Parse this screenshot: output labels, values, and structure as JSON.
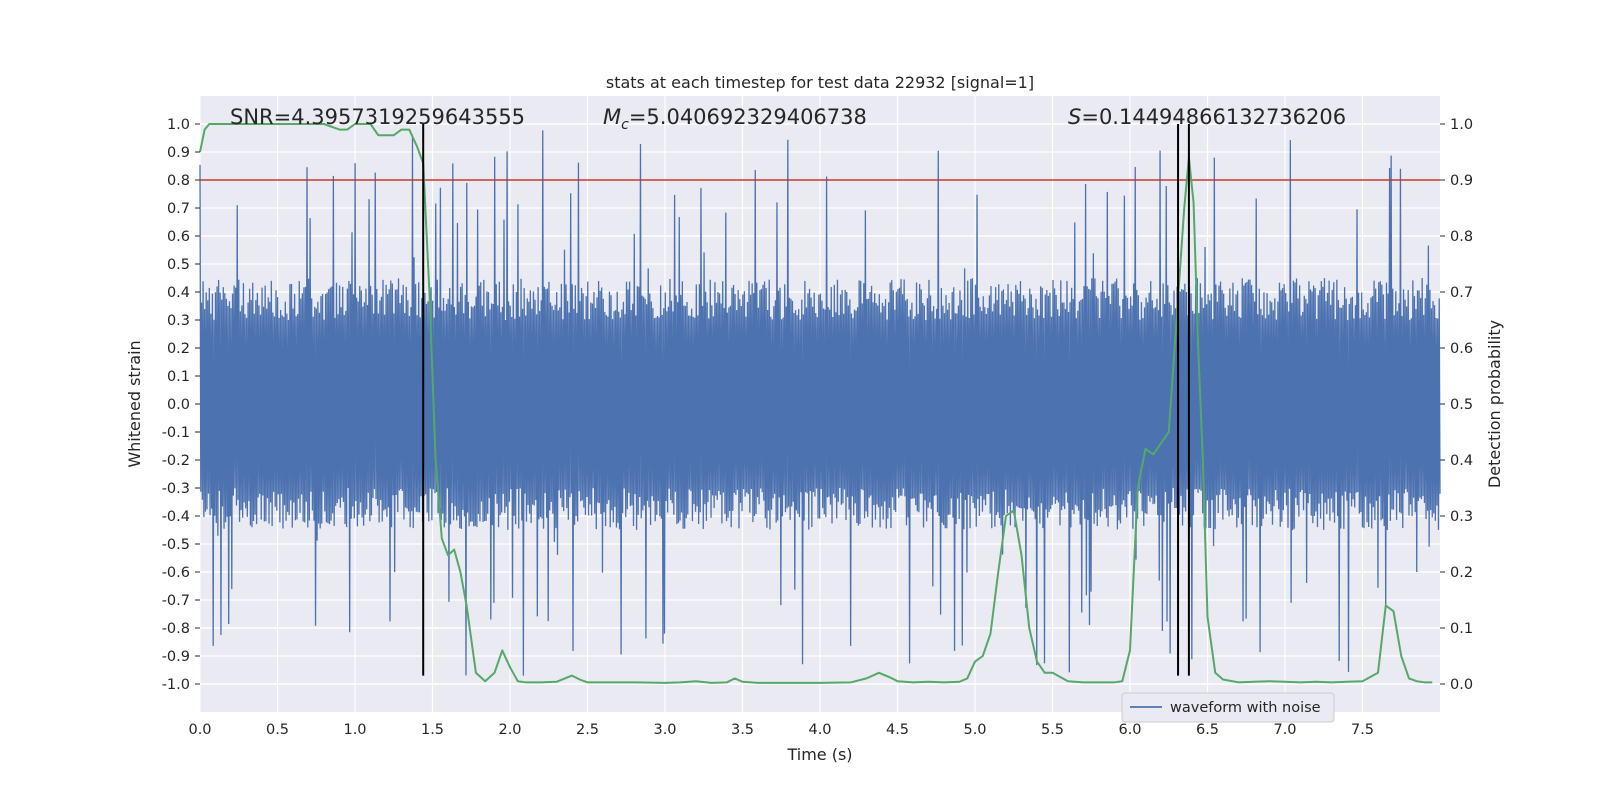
{
  "chart_data": {
    "type": "line",
    "title": "stats at each timestep for test data 22932 [signal=1]",
    "xlabel": "Time (s)",
    "ylabel_left": "Whitened strain",
    "ylabel_right": "Detection probability",
    "xlim": [
      0.0,
      8.0
    ],
    "ylim_left": [
      -1.1,
      1.1
    ],
    "ylim_right": [
      -0.05,
      1.05
    ],
    "x_ticks": [
      "0.0",
      "0.5",
      "1.0",
      "1.5",
      "2.0",
      "2.5",
      "3.0",
      "3.5",
      "4.0",
      "4.5",
      "5.0",
      "5.5",
      "6.0",
      "6.5",
      "7.0",
      "7.5"
    ],
    "y_left_ticks": [
      "-1.0",
      "-0.9",
      "-0.8",
      "-0.7",
      "-0.6",
      "-0.5",
      "-0.4",
      "-0.3",
      "-0.2",
      "-0.1",
      "0.0",
      "0.1",
      "0.2",
      "0.3",
      "0.4",
      "0.5",
      "0.6",
      "0.7",
      "0.8",
      "0.9",
      "1.0"
    ],
    "y_right_ticks": [
      "0.0",
      "0.1",
      "0.2",
      "0.3",
      "0.4",
      "0.5",
      "0.6",
      "0.7",
      "0.8",
      "0.9",
      "1.0"
    ],
    "grid": true,
    "annotations": {
      "snr": "SNR=4.3957319259643555",
      "mc_symbol": "M",
      "mc_sub": "c",
      "mc_value": "=5.040692329406738",
      "s_symbol": "S",
      "s_value": "=0.14494866132736206"
    },
    "threshold": {
      "value": 0.9,
      "axis": "right",
      "color": "#c0392b"
    },
    "vlines": [
      1.44,
      6.31,
      6.38
    ],
    "waveform": {
      "name": "waveform with noise",
      "color": "#4c72b0",
      "sample_count": 1600,
      "envelope_upper": 0.45,
      "envelope_lower": -0.45,
      "peak_max": 0.98,
      "peak_min": -0.97
    },
    "series": [
      {
        "name": "detection probability",
        "axis": "right",
        "color": "#55a868",
        "x": [
          0.0,
          0.03,
          0.06,
          0.12,
          0.2,
          0.3,
          0.4,
          0.5,
          0.6,
          0.7,
          0.8,
          0.9,
          0.95,
          1.0,
          1.05,
          1.1,
          1.15,
          1.2,
          1.25,
          1.3,
          1.35,
          1.4,
          1.44,
          1.48,
          1.52,
          1.56,
          1.6,
          1.64,
          1.68,
          1.72,
          1.78,
          1.84,
          1.9,
          1.95,
          2.0,
          2.05,
          2.1,
          2.2,
          2.3,
          2.4,
          2.45,
          2.5,
          2.6,
          2.7,
          2.8,
          3.0,
          3.1,
          3.2,
          3.3,
          3.4,
          3.45,
          3.5,
          3.6,
          3.8,
          4.0,
          4.2,
          4.3,
          4.38,
          4.45,
          4.5,
          4.6,
          4.7,
          4.8,
          4.9,
          4.95,
          5.0,
          5.05,
          5.1,
          5.15,
          5.2,
          5.25,
          5.3,
          5.35,
          5.4,
          5.45,
          5.5,
          5.6,
          5.7,
          5.8,
          5.9,
          5.95,
          6.0,
          6.05,
          6.1,
          6.15,
          6.2,
          6.25,
          6.3,
          6.35,
          6.38,
          6.41,
          6.44,
          6.47,
          6.5,
          6.55,
          6.6,
          6.7,
          6.8,
          6.9,
          7.0,
          7.1,
          7.2,
          7.3,
          7.4,
          7.5,
          7.6,
          7.65,
          7.7,
          7.75,
          7.8,
          7.85,
          7.9,
          7.95
        ],
        "y": [
          0.95,
          0.99,
          1.0,
          1.0,
          1.0,
          1.0,
          1.0,
          1.0,
          1.0,
          1.0,
          1.0,
          0.99,
          0.99,
          1.0,
          1.0,
          1.0,
          0.98,
          0.98,
          0.98,
          0.99,
          0.99,
          0.96,
          0.93,
          0.7,
          0.4,
          0.26,
          0.23,
          0.24,
          0.2,
          0.14,
          0.02,
          0.005,
          0.02,
          0.06,
          0.03,
          0.005,
          0.003,
          0.003,
          0.004,
          0.015,
          0.008,
          0.003,
          0.003,
          0.003,
          0.003,
          0.002,
          0.003,
          0.005,
          0.002,
          0.003,
          0.01,
          0.004,
          0.002,
          0.002,
          0.002,
          0.003,
          0.01,
          0.02,
          0.012,
          0.005,
          0.003,
          0.004,
          0.003,
          0.004,
          0.01,
          0.04,
          0.05,
          0.09,
          0.2,
          0.3,
          0.31,
          0.23,
          0.1,
          0.04,
          0.02,
          0.02,
          0.005,
          0.003,
          0.003,
          0.003,
          0.005,
          0.06,
          0.35,
          0.42,
          0.41,
          0.43,
          0.45,
          0.65,
          0.85,
          0.94,
          0.86,
          0.6,
          0.4,
          0.12,
          0.02,
          0.008,
          0.003,
          0.004,
          0.005,
          0.004,
          0.003,
          0.004,
          0.003,
          0.004,
          0.005,
          0.02,
          0.14,
          0.13,
          0.05,
          0.01,
          0.005,
          0.003,
          0.003
        ]
      }
    ]
  }
}
